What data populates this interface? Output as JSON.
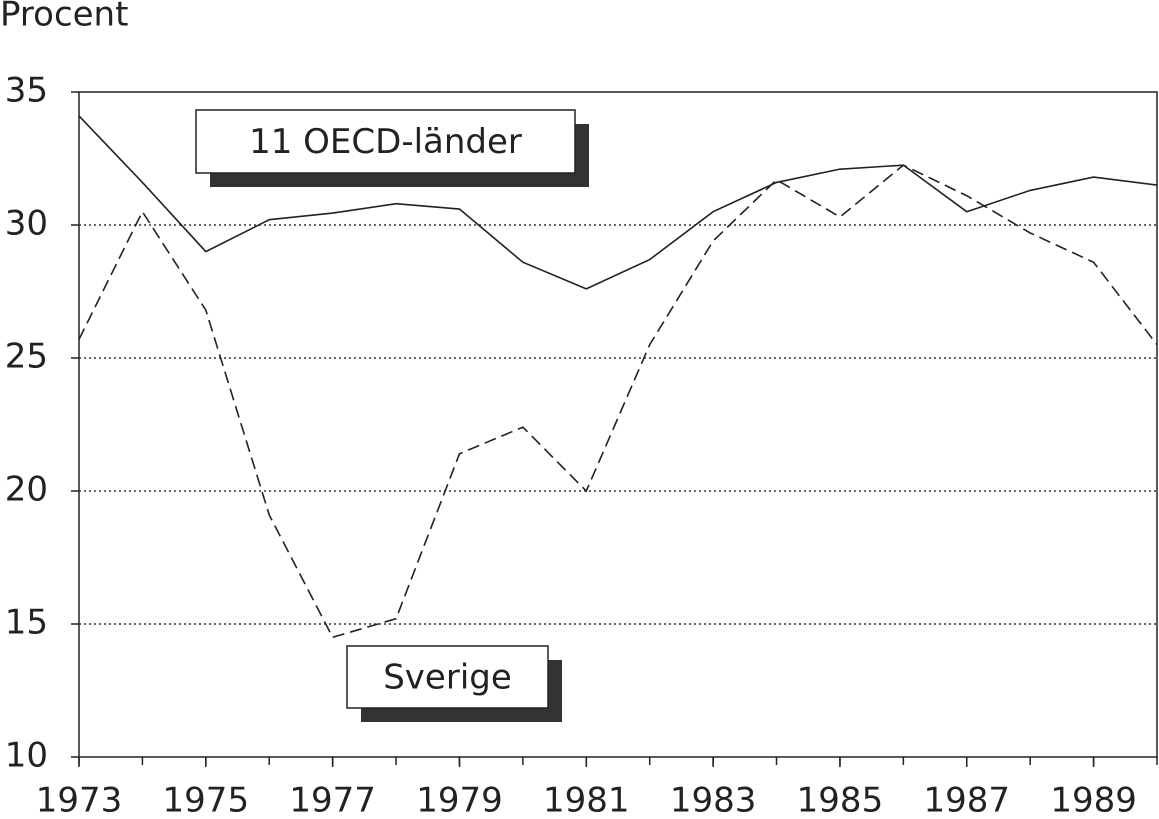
{
  "chart_data": {
    "type": "line",
    "y_label": "Procent",
    "x": [
      1973,
      1974,
      1975,
      1976,
      1977,
      1978,
      1979,
      1980,
      1981,
      1982,
      1983,
      1984,
      1985,
      1986,
      1987,
      1988,
      1989,
      1990
    ],
    "series": [
      {
        "name": "11 OECD-länder",
        "color": "#222222",
        "dash": "solid",
        "values": [
          34.1,
          31.6,
          29.0,
          30.2,
          30.45,
          30.8,
          30.6,
          28.6,
          27.6,
          28.7,
          30.5,
          31.6,
          32.1,
          32.25,
          30.5,
          31.3,
          31.8,
          31.5
        ]
      },
      {
        "name": "Sverige",
        "color": "#222222",
        "dash": "dashed",
        "values": [
          25.7,
          30.5,
          26.8,
          19.1,
          14.5,
          15.2,
          21.4,
          22.4,
          20.0,
          25.5,
          29.4,
          31.7,
          30.3,
          32.25,
          31.1,
          29.7,
          28.6,
          25.5
        ]
      }
    ],
    "xlim": [
      1973,
      1990
    ],
    "xticks": [
      1973,
      1975,
      1977,
      1979,
      1981,
      1983,
      1985,
      1987,
      1989
    ],
    "ylim": [
      10,
      35
    ],
    "yticks": [
      10,
      15,
      20,
      25,
      30,
      35
    ],
    "grid": true
  }
}
